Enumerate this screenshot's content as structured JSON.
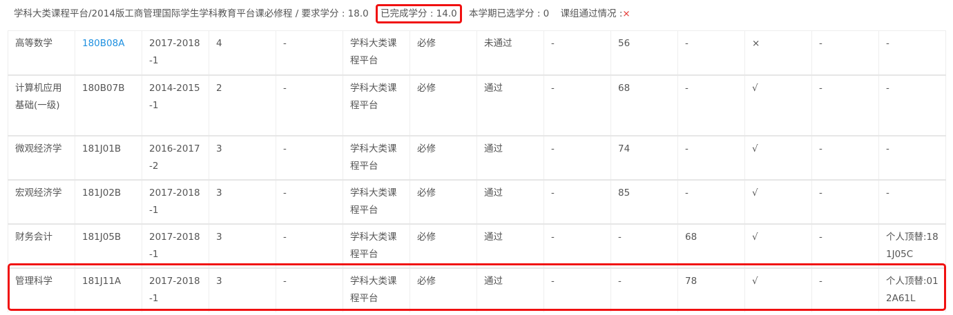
{
  "summary": {
    "path": "学科大类课程平台/2014版工商管理国际学生学科教育平台课必修程 / 要求学分 : 18.0",
    "completed": "已完成学分 : 14.0",
    "selected": "本学期已选学分 : 0",
    "group_status_label": "课组通过情况 :",
    "group_status_value": "×"
  },
  "colors": {
    "link": "#1e90e0",
    "highlight": "#f01010",
    "fail": "#e53935"
  },
  "rows": [
    {
      "cells": [
        "高等数学",
        "180B08A",
        "2017-2018-1",
        "4",
        "-",
        "学科大类课程平台",
        "必修",
        "未通过",
        "-",
        "56",
        "-",
        "×",
        "-",
        "-"
      ],
      "link_code": true
    },
    {
      "cells": [
        "计算机应用基础(一级)",
        "180B07B",
        "2014-2015-1",
        "2",
        "-",
        "学科大类课程平台",
        "必修",
        "通过",
        "-",
        "68",
        "-",
        "√",
        "-",
        "-"
      ]
    },
    {
      "cells": [
        "微观经济学",
        "181J01B",
        "2016-2017-2",
        "3",
        "-",
        "学科大类课程平台",
        "必修",
        "通过",
        "-",
        "74",
        "-",
        "√",
        "-",
        "-"
      ]
    },
    {
      "cells": [
        "宏观经济学",
        "181J02B",
        "2017-2018-1",
        "3",
        "-",
        "学科大类课程平台",
        "必修",
        "通过",
        "-",
        "85",
        "-",
        "√",
        "-",
        "-"
      ]
    },
    {
      "cells": [
        "财务会计",
        "181J05B",
        "2017-2018-1",
        "3",
        "-",
        "学科大类课程平台",
        "必修",
        "通过",
        "-",
        "-",
        "68",
        "√",
        "-",
        "个人顶替:181J05C"
      ]
    },
    {
      "cells": [
        "管理科学",
        "181J11A",
        "2017-2018-1",
        "3",
        "-",
        "学科大类课程平台",
        "必修",
        "通过",
        "-",
        "-",
        "78",
        "√",
        "-",
        "个人顶替:012A61L"
      ],
      "highlighted": true
    }
  ]
}
